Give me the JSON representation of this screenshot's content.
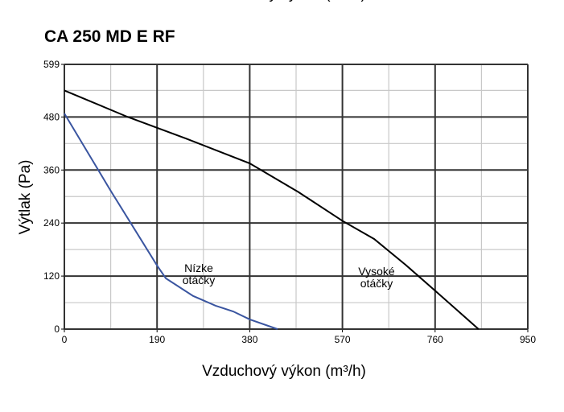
{
  "chart_data": {
    "type": "line",
    "title": "CA 250 MD E RF",
    "xlabel": "Vzduchový výkon (m³/h)",
    "ylabel": "Výtlak (Pa)",
    "xlim": [
      0,
      950
    ],
    "ylim": [
      0,
      599
    ],
    "xticks": [
      0,
      190,
      380,
      570,
      760,
      950
    ],
    "yticks": [
      0,
      120,
      240,
      360,
      480,
      599
    ],
    "x_minor_grid": [
      95,
      285,
      475,
      665,
      855
    ],
    "y_minor_grid": [
      60,
      180,
      300,
      420,
      540
    ],
    "grid": true,
    "series": [
      {
        "name": "Vysoké otáčky",
        "color": "#000000",
        "x": [
          0,
          130,
          250,
          380,
          480,
          570,
          635,
          700,
          760,
          849
        ],
        "values": [
          540,
          480,
          431,
          375,
          310,
          245,
          204,
          145,
          87,
          0
        ]
      },
      {
        "name": "Nízke otáčky",
        "color": "#3a55a0",
        "x": [
          0,
          95,
          190,
          208,
          264,
          310,
          346,
          380,
          437
        ],
        "values": [
          488,
          313,
          144,
          115,
          75,
          53,
          40,
          22,
          0
        ]
      }
    ],
    "annotations": [
      {
        "lines": [
          "Nízke",
          "otáčky"
        ]
      },
      {
        "lines": [
          "Vysoké",
          "otáčky"
        ]
      }
    ]
  }
}
